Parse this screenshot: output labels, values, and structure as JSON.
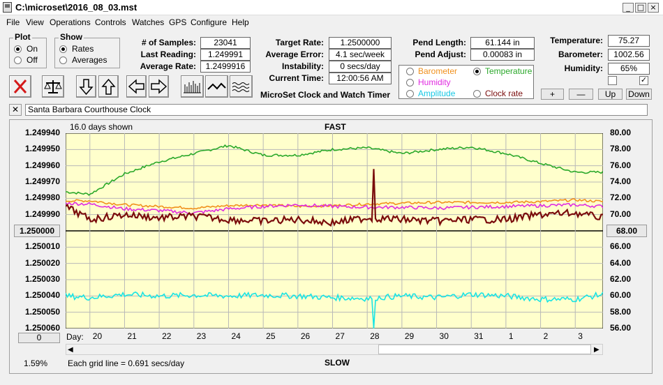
{
  "window": {
    "title": "C:\\microset\\2016_08_03.mst"
  },
  "menu": [
    "File",
    "View",
    "Operations",
    "Controls",
    "Watches",
    "GPS",
    "Configure",
    "Help"
  ],
  "plot_group": {
    "title": "Plot",
    "on": "On",
    "off": "Off",
    "selected": "On"
  },
  "show_group": {
    "title": "Show",
    "rates": "Rates",
    "averages": "Averages",
    "selected": "Rates"
  },
  "stats": {
    "samples_label": "# of Samples:",
    "samples": "23041",
    "last_reading_label": "Last Reading:",
    "last_reading": "1.249991",
    "average_rate_label": "Average Rate:",
    "average_rate": "1.2499916",
    "target_rate_label": "Target Rate:",
    "target_rate": "1.2500000",
    "average_error_label": "Average Error:",
    "average_error": "4.1 sec/week",
    "instability_label": "Instability:",
    "instability": "0 secs/day",
    "current_time_label": "Current Time:",
    "current_time": "12:00:56 AM",
    "pend_length_label": "Pend Length:",
    "pend_length": "61.144 in",
    "pend_adjust_label": "Pend Adjust:",
    "pend_adjust": "0.00083 in",
    "temperature_label": "Temperature:",
    "temperature": "75.27",
    "barometer_label": "Barometer:",
    "barometer": "1002.56",
    "humidity_label": "Humidity:",
    "humidity": "65%"
  },
  "app_subtitle": "MicroSet Clock and Watch Timer",
  "sensor_options": {
    "barometer": "Barometer",
    "temperature": "Temperature",
    "humidity": "Humidity",
    "amplitude": "Amplitude",
    "clock_rate": "Clock rate",
    "selected": "Temperature"
  },
  "sensor_buttons": {
    "plus": "+",
    "minus": "—",
    "up": "Up",
    "down": "Down"
  },
  "clock_name": "Santa Barbara Courthouse Clock",
  "chart_header": {
    "days_shown": "16.0 days shown",
    "fast": "FAST",
    "slow": "SLOW",
    "grid_note": "Each grid line = 0.691 secs/day",
    "percent": "1.59%",
    "day_label": "Day:",
    "left_button": "1.250000",
    "right_button": "68.00",
    "bottom_button": "0"
  },
  "colors": {
    "temperature": "#2aa82a",
    "barometer": "#f0901c",
    "humidity": "#e02ae0",
    "amplitude": "#18e4e4",
    "rate": "#7a0c0c",
    "plot_bg": "#ffffcc"
  },
  "chart_data": {
    "type": "line",
    "x_label": "Day:",
    "x_tick_labels": [
      "20",
      "21",
      "22",
      "23",
      "24",
      "25",
      "26",
      "27",
      "28",
      "29",
      "30",
      "31",
      "1",
      "2",
      "3"
    ],
    "left_axis": {
      "ticks": [
        "1.249940",
        "1.249950",
        "1.249960",
        "1.249970",
        "1.249980",
        "1.249990",
        "1.250000",
        "1.250010",
        "1.250020",
        "1.250030",
        "1.250040",
        "1.250050",
        "1.250060"
      ],
      "range": [
        1.24994,
        1.25006
      ],
      "inverted": true
    },
    "right_axis": {
      "ticks": [
        "80.00",
        "78.00",
        "76.00",
        "74.00",
        "72.00",
        "70.00",
        "68.00",
        "66.00",
        "64.00",
        "62.00",
        "60.00",
        "58.00",
        "56.00"
      ],
      "range": [
        56,
        80
      ]
    },
    "grid": true,
    "days": [
      19.3,
      20.0,
      21.0,
      22.0,
      23.0,
      24.0,
      25.0,
      26.0,
      27.0,
      28.0,
      29.0,
      30.0,
      31.0,
      32.0,
      33.0,
      34.0,
      34.8
    ],
    "series": [
      {
        "key": "temperature",
        "axis": "right",
        "values": [
          72.8,
          72.5,
          75.0,
          76.5,
          77.5,
          78.5,
          77.3,
          77.3,
          78.0,
          78.2,
          77.5,
          78.0,
          78.3,
          77.5,
          76.3,
          75.2,
          75.2
        ]
      },
      {
        "key": "barometer",
        "axis": "right",
        "values": [
          71.7,
          71.7,
          71.2,
          71.0,
          70.8,
          71.1,
          71.2,
          71.0,
          71.1,
          71.3,
          71.4,
          71.5,
          71.5,
          71.5,
          71.6,
          71.8,
          71.6
        ]
      },
      {
        "key": "humidity",
        "axis": "right",
        "values": [
          71.4,
          71.3,
          70.7,
          70.5,
          70.2,
          70.7,
          71.0,
          71.2,
          71.0,
          70.9,
          70.9,
          70.8,
          70.9,
          71.0,
          71.1,
          71.2,
          71.0
        ]
      },
      {
        "key": "rate",
        "axis": "left",
        "values": [
          1.249985,
          1.249993,
          1.24999,
          1.249992,
          1.249991,
          1.249993,
          1.249994,
          1.249993,
          1.249995,
          1.249992,
          1.249993,
          1.249994,
          1.249993,
          1.249993,
          1.24999,
          1.249989,
          1.249992
        ]
      },
      {
        "key": "amplitude",
        "axis": "right",
        "values": [
          60.0,
          59.8,
          60.2,
          60.0,
          60.1,
          60.0,
          60.1,
          60.0,
          59.8,
          59.7,
          60.0,
          59.8,
          60.2,
          60.0,
          59.6,
          59.6,
          60.2
        ]
      }
    ],
    "spikes": [
      {
        "key": "rate",
        "day": 28.2,
        "value": 1.249962
      },
      {
        "key": "amplitude",
        "day": 28.2,
        "value": 56.0
      }
    ]
  }
}
